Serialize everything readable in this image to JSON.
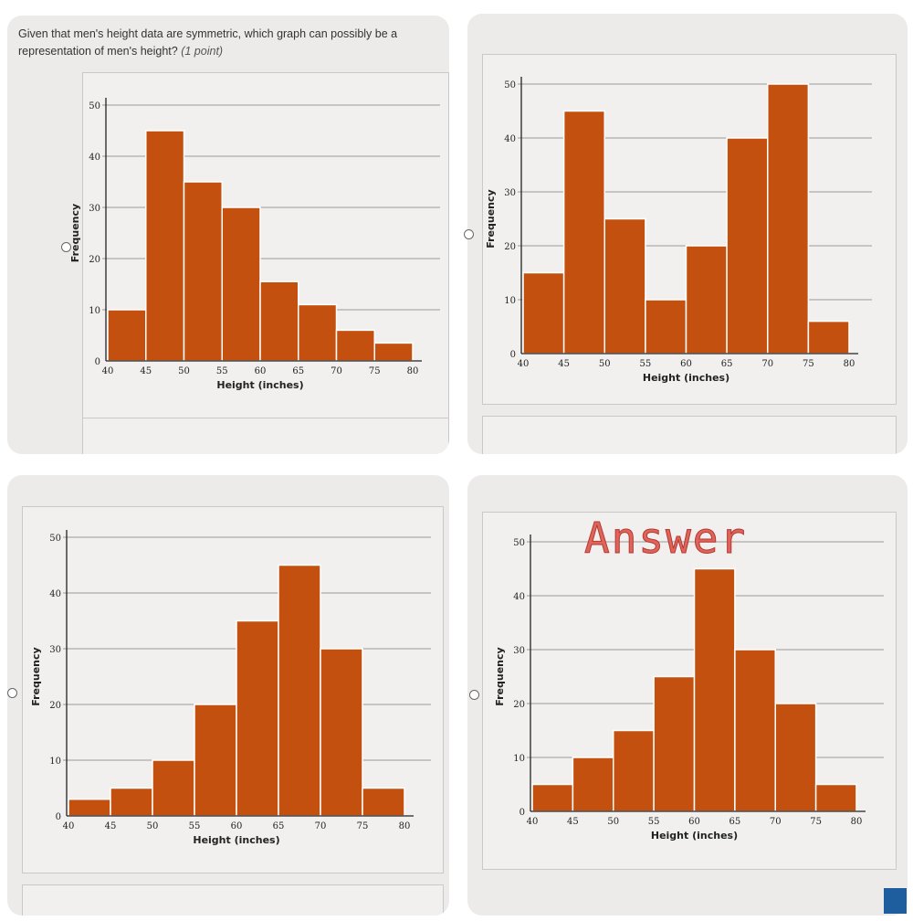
{
  "question": {
    "text": "Given that men's height data are symmetric, which graph can possibly be a representation of men's height?",
    "points": "(1 point)"
  },
  "annotation": "Answer",
  "selected_option": 4,
  "colors": {
    "bar": "#c4500f",
    "bar_edge": "#ffffff",
    "annotation": "#e0645a"
  },
  "chart_data": [
    {
      "type": "bar",
      "option": 1,
      "categories": [
        "40-45",
        "45-50",
        "50-55",
        "55-60",
        "60-65",
        "65-70",
        "70-75",
        "75-80"
      ],
      "x_ticks": [
        40,
        45,
        50,
        55,
        60,
        65,
        70,
        75,
        80
      ],
      "values": [
        10,
        45,
        35,
        30,
        15.5,
        11,
        6,
        3.5
      ],
      "xlabel": "Height (inches)",
      "ylabel": "Frequency",
      "ylim": [
        0,
        50
      ],
      "y_ticks": [
        0,
        10,
        20,
        30,
        40,
        50
      ],
      "grid": true
    },
    {
      "type": "bar",
      "option": 2,
      "categories": [
        "40-45",
        "45-50",
        "50-55",
        "55-60",
        "60-65",
        "65-70",
        "70-75",
        "75-80"
      ],
      "x_ticks": [
        40,
        45,
        50,
        55,
        60,
        65,
        70,
        75,
        80
      ],
      "values": [
        15,
        45,
        25,
        10,
        20,
        40,
        50,
        6
      ],
      "xlabel": "Height (inches)",
      "ylabel": "Frequency",
      "ylim": [
        0,
        50
      ],
      "y_ticks": [
        0,
        10,
        20,
        30,
        40,
        50
      ],
      "grid": true
    },
    {
      "type": "bar",
      "option": 3,
      "categories": [
        "40-45",
        "45-50",
        "50-55",
        "55-60",
        "60-65",
        "65-70",
        "70-75",
        "75-80"
      ],
      "x_ticks": [
        40,
        45,
        50,
        55,
        60,
        65,
        70,
        75,
        80
      ],
      "values": [
        3,
        5,
        10,
        20,
        35,
        45,
        30,
        5
      ],
      "xlabel": "Height (inches)",
      "ylabel": "Frequency",
      "ylim": [
        0,
        50
      ],
      "y_ticks": [
        0,
        10,
        20,
        30,
        40,
        50
      ],
      "grid": true
    },
    {
      "type": "bar",
      "option": 4,
      "categories": [
        "40-45",
        "45-50",
        "50-55",
        "55-60",
        "60-65",
        "65-70",
        "70-75",
        "75-80"
      ],
      "x_ticks": [
        40,
        45,
        50,
        55,
        60,
        65,
        70,
        75,
        80
      ],
      "values": [
        5,
        10,
        15,
        25,
        45,
        30,
        20,
        5
      ],
      "xlabel": "Height (inches)",
      "ylabel": "Frequency",
      "ylim": [
        0,
        50
      ],
      "y_ticks": [
        0,
        10,
        20,
        30,
        40,
        50
      ],
      "grid": true
    }
  ]
}
